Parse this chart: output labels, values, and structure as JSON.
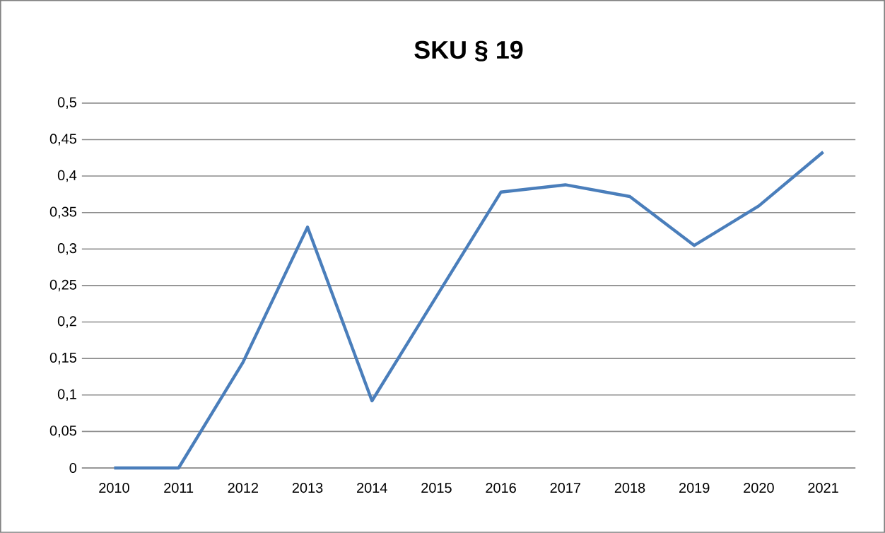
{
  "chart_data": {
    "type": "line",
    "title": "SKU § 19",
    "categories": [
      "2010",
      "2011",
      "2012",
      "2013",
      "2014",
      "2015",
      "2016",
      "2017",
      "2018",
      "2019",
      "2020",
      "2021"
    ],
    "series": [
      {
        "color": "#4a7ebb",
        "values": [
          0,
          0,
          0.145,
          0.33,
          0.092,
          0.235,
          0.378,
          0.388,
          0.372,
          0.305,
          0.359,
          0.433
        ]
      }
    ],
    "ylim": [
      0,
      0.5
    ],
    "yticks": [
      {
        "value": 0,
        "label": "0"
      },
      {
        "value": 0.05,
        "label": "0,05"
      },
      {
        "value": 0.1,
        "label": "0,1"
      },
      {
        "value": 0.15,
        "label": "0,15"
      },
      {
        "value": 0.2,
        "label": "0,2"
      },
      {
        "value": 0.25,
        "label": "0,25"
      },
      {
        "value": 0.3,
        "label": "0,3"
      },
      {
        "value": 0.35,
        "label": "0,35"
      },
      {
        "value": 0.4,
        "label": "0,4"
      },
      {
        "value": 0.45,
        "label": "0,45"
      },
      {
        "value": 0.5,
        "label": "0,5"
      }
    ],
    "grid": "y",
    "marker": "none",
    "line_style": "solid"
  }
}
